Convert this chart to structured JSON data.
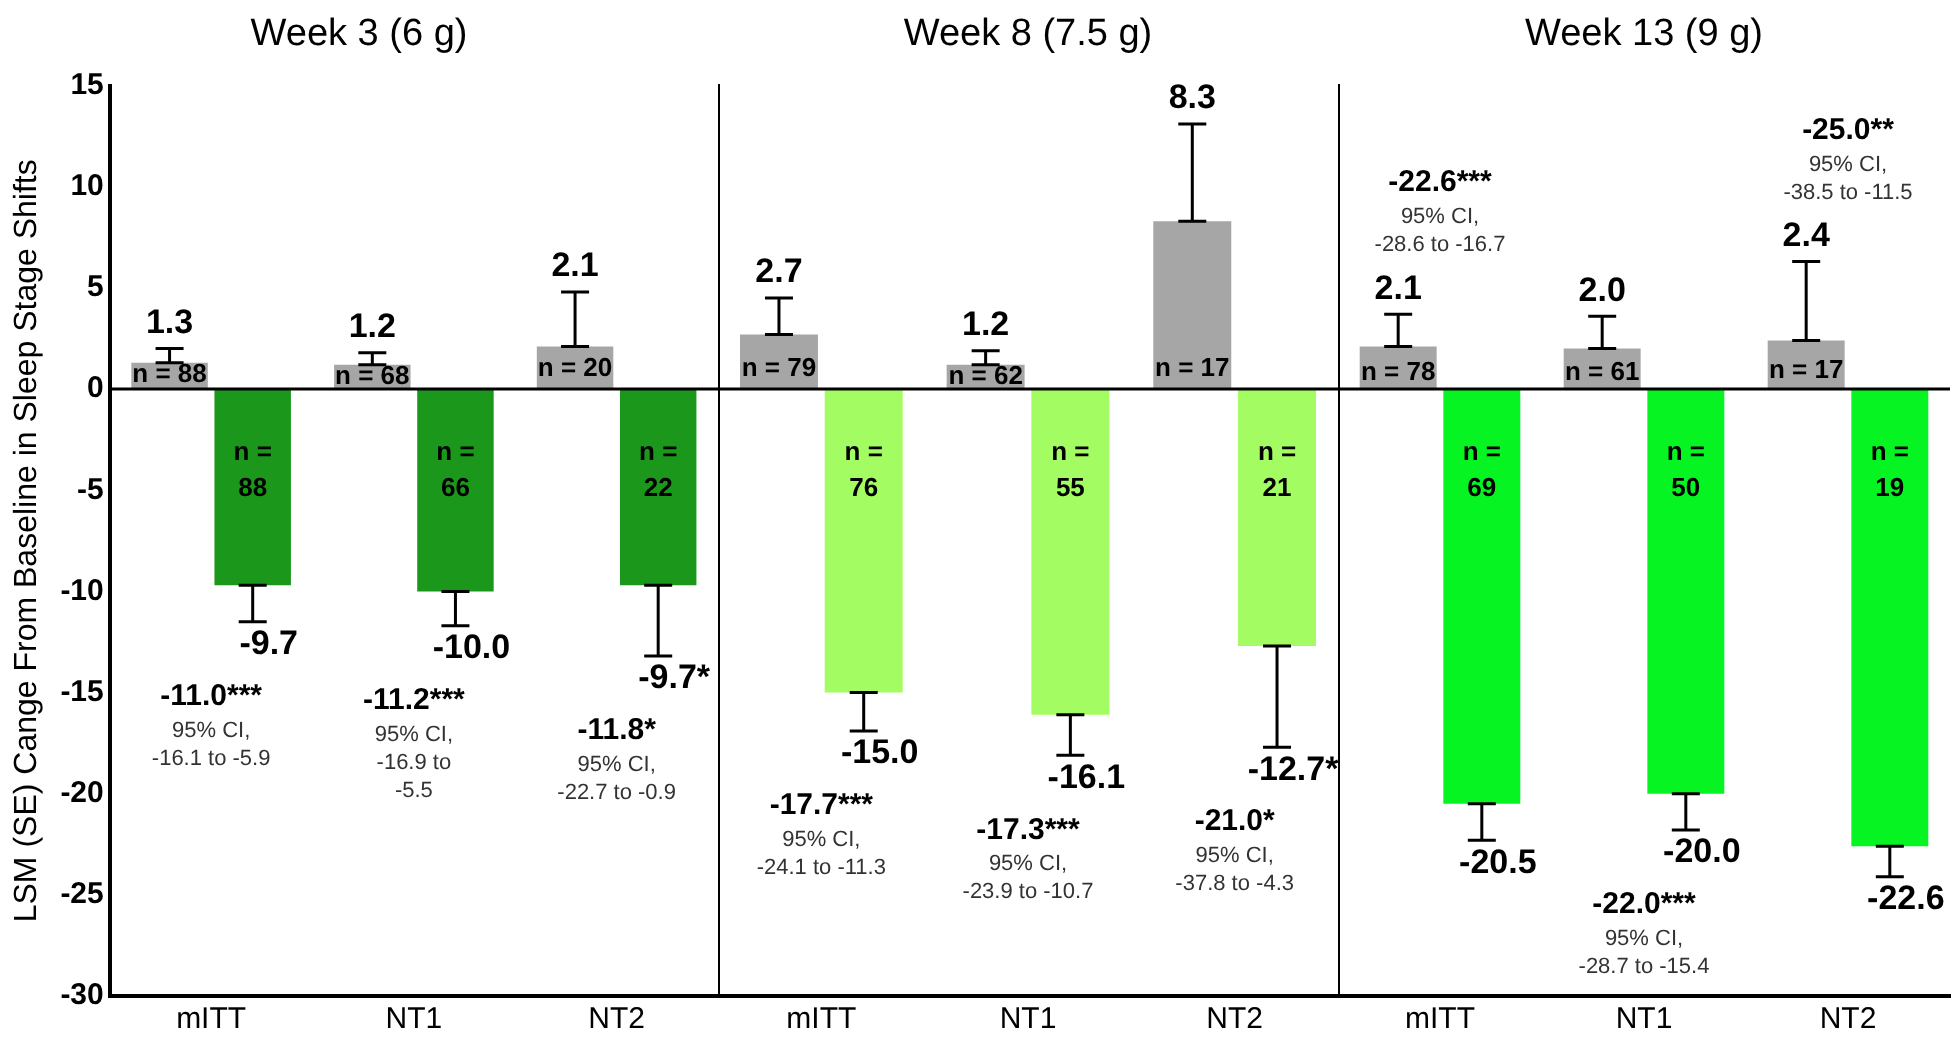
{
  "chart_data": [
    {
      "type": "bar",
      "title": "Week 3 (6 g)",
      "ylabel": "LSM (SE) Cange From Baseline in Sleep Stage Shifts",
      "categories": [
        "mITT",
        "NT1",
        "NT2"
      ],
      "ylim": [
        -30,
        15
      ],
      "yticks": [
        -30,
        -25,
        -20,
        -15,
        -10,
        -5,
        0,
        5,
        10,
        15
      ],
      "grid": false,
      "legend": false,
      "series": [
        {
          "color": "#a6a6a6",
          "values": [
            1.3,
            1.2,
            2.1
          ],
          "errors": [
            [
              1.3,
              2.0
            ],
            [
              1.2,
              1.8
            ],
            [
              2.1,
              4.8
            ]
          ],
          "value_labels": [
            "1.3",
            "1.2",
            "2.1"
          ]
        },
        {
          "color": "#1b981b",
          "values": [
            -9.7,
            -10.0,
            -9.7
          ],
          "errors": [
            [
              -11.5,
              -9.7
            ],
            [
              -11.7,
              -10.0
            ],
            [
              -13.2,
              -9.7
            ]
          ],
          "value_labels": [
            "-9.7",
            "-10.0",
            "-9.7*"
          ]
        }
      ],
      "ref_lines": [
        {
          "axis": "y",
          "value": 0
        }
      ],
      "annotations": [
        {
          "text": "n = 88",
          "x": "mITT",
          "y": 0.7
        },
        {
          "text": "n = 68",
          "x": "NT1",
          "y": 0.6
        },
        {
          "text": "n = 20",
          "x": "NT2",
          "y": 1.0
        },
        {
          "text": "n =\n88",
          "x": "mITT",
          "y": -2.5
        },
        {
          "text": "n =\n66",
          "x": "NT1",
          "y": -2.5
        },
        {
          "text": "n =\n22",
          "x": "NT2",
          "y": -2.5
        },
        "-11.0***\n95% CI,\n-16.1 to -5.9",
        "-11.2***\n95% CI,\n-16.9 to\n-5.5",
        "-11.8*\n95% CI,\n-22.7 to -0.9"
      ]
    },
    {
      "type": "bar",
      "title": "Week 8 (7.5 g)",
      "categories": [
        "mITT",
        "NT1",
        "NT2"
      ],
      "ylim": [
        -30,
        15
      ],
      "yticks": [
        -30,
        -25,
        -20,
        -15,
        -10,
        -5,
        0,
        5,
        10,
        15
      ],
      "grid": false,
      "legend": false,
      "tick_labels": "x",
      "series": [
        {
          "color": "#a6a6a6",
          "values": [
            2.7,
            1.2,
            8.3
          ],
          "errors": [
            [
              2.7,
              4.5
            ],
            [
              1.2,
              1.9
            ],
            [
              8.3,
              13.1
            ]
          ],
          "value_labels": [
            "2.7",
            "1.2",
            "8.3"
          ]
        },
        {
          "color": "#a3fc62",
          "values": [
            -15.0,
            -16.1,
            -12.7
          ],
          "errors": [
            [
              -16.9,
              -15.0
            ],
            [
              -18.1,
              -16.1
            ],
            [
              -17.7,
              -12.7
            ]
          ],
          "value_labels": [
            "-15.0",
            "-16.1",
            "-12.7*"
          ]
        }
      ],
      "ref_lines": [
        {
          "axis": "y",
          "value": 0
        }
      ],
      "annotations": [
        {
          "text": "n = 79",
          "x": "mITT",
          "y": 1.0
        },
        {
          "text": "n = 62",
          "x": "NT1",
          "y": 0.6
        },
        {
          "text": "n = 17",
          "x": "NT2",
          "y": 1.0
        },
        {
          "text": "n =\n76",
          "x": "mITT",
          "y": -2.5
        },
        {
          "text": "n =\n55",
          "x": "NT1",
          "y": -2.5
        },
        {
          "text": "n =\n21",
          "x": "NT2",
          "y": -2.5
        },
        "-17.7***\n95% CI,\n-24.1 to -11.3",
        "-17.3***\n95% CI,\n-23.9 to -10.7",
        "-21.0*\n95% CI,\n-37.8 to -4.3"
      ]
    },
    {
      "type": "bar",
      "title": "Week 13 (9 g)",
      "categories": [
        "mITT",
        "NT1",
        "NT2"
      ],
      "ylim": [
        -30,
        15
      ],
      "yticks": [
        -30,
        -25,
        -20,
        -15,
        -10,
        -5,
        0,
        5,
        10,
        15
      ],
      "grid": false,
      "legend": false,
      "tick_labels": "x",
      "series": [
        {
          "color": "#a6a6a6",
          "values": [
            2.1,
            2.0,
            2.4
          ],
          "errors": [
            [
              2.1,
              3.7
            ],
            [
              2.0,
              3.6
            ],
            [
              2.4,
              6.3
            ]
          ],
          "value_labels": [
            "2.1",
            "2.0",
            "2.4"
          ]
        },
        {
          "color": "#06f522",
          "values": [
            -20.5,
            -20.0,
            -22.6
          ],
          "errors": [
            [
              -22.3,
              -20.5
            ],
            [
              -21.8,
              -20.0
            ],
            [
              -24.1,
              -22.6
            ]
          ],
          "value_labels": [
            "-20.5",
            "-20.0",
            "-22.6"
          ]
        }
      ],
      "ref_lines": [
        {
          "axis": "y",
          "value": 0
        }
      ],
      "annotations": [
        {
          "text": "n = 78",
          "x": "mITT",
          "y": 0.8
        },
        {
          "text": "n = 61",
          "x": "NT1",
          "y": 0.8
        },
        {
          "text": "n = 17",
          "x": "NT2",
          "y": 0.9
        },
        {
          "text": "n =\n69",
          "x": "mITT",
          "y": -2.5
        },
        {
          "text": "n =\n50",
          "x": "NT1",
          "y": -2.5
        },
        {
          "text": "n =\n19",
          "x": "NT2",
          "y": -2.5
        },
        "-22.6***\n95% CI,\n-28.6 to -16.7",
        "-22.0***\n95% CI,\n-28.7 to -15.4",
        "-25.0**\n95% CI,\n-38.5 to -11.5"
      ]
    }
  ]
}
